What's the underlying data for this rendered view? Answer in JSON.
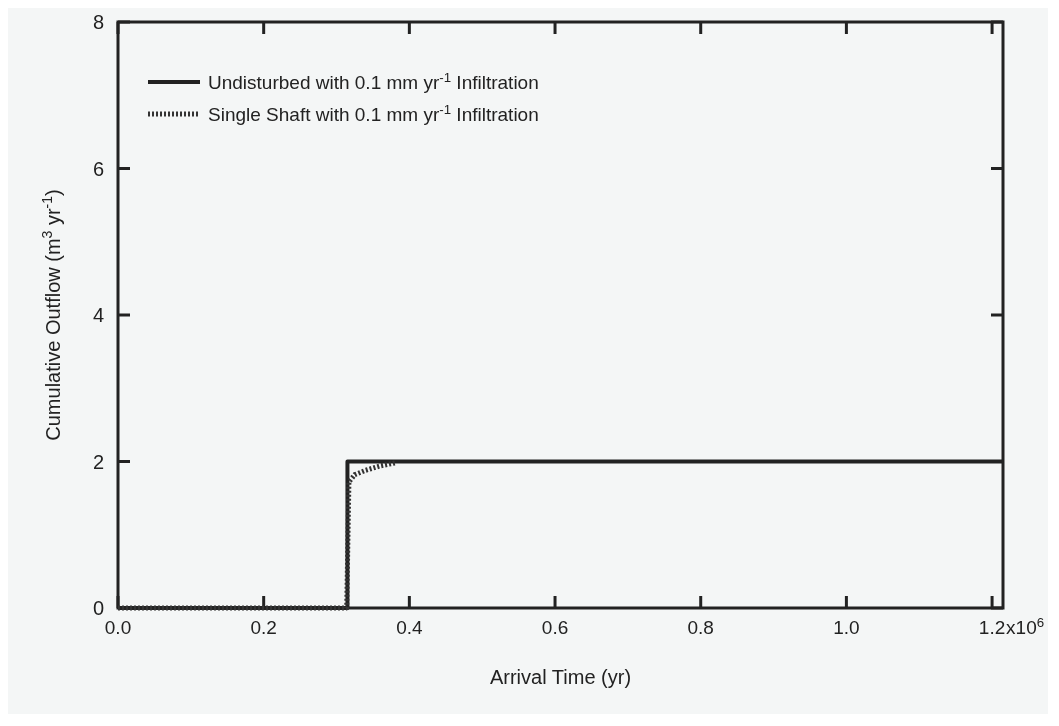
{
  "chart_data": {
    "type": "line",
    "xlabel": "Arrival Time (yr)",
    "ylabel": "Cumulative Outflow (m$^{3}$ yr$^{-1}$)",
    "xlim": [
      0,
      1.215
    ],
    "ylim": [
      0,
      8
    ],
    "xticks": [
      {
        "value": 0,
        "label": "0.0"
      },
      {
        "value": 0.2,
        "label": "0.2"
      },
      {
        "value": 0.4,
        "label": "0.4"
      },
      {
        "value": 0.6,
        "label": "0.6"
      },
      {
        "value": 0.8,
        "label": "0.8"
      },
      {
        "value": 1,
        "label": "1.0"
      },
      {
        "value": 1.2,
        "label": "1.2"
      }
    ],
    "annotations": [
      "x10$^{6}$"
    ],
    "yticks": [
      0,
      2,
      4,
      6,
      8
    ],
    "legend": "top left",
    "grid": false,
    "series": [
      {
        "name": "Undisturbed with 0.1 mm yr$^{-1}$ Infiltration",
        "color": "#222222",
        "line_style": "solid",
        "x": [
          0,
          0.315,
          0.315,
          1.215
        ],
        "values": [
          0,
          0,
          2.0,
          2.0
        ]
      },
      {
        "name": "Single Shaft with 0.1 mm yr$^{-1}$ Infiltration",
        "color": "#333333",
        "line_style": "dotted",
        "x": [
          0,
          0.314,
          0.317,
          0.325,
          0.34,
          0.36,
          0.38
        ],
        "values": [
          0,
          0,
          1.72,
          1.82,
          1.88,
          1.94,
          1.98
        ]
      }
    ]
  }
}
